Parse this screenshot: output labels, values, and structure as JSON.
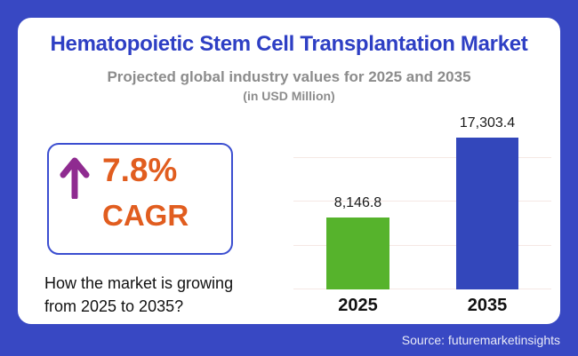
{
  "header": {
    "title": "Hematopoietic Stem Cell Transplantation Market",
    "subtitle": "Projected global industry values for 2025 and 2035",
    "unit_note": "(in USD Million)"
  },
  "cagr": {
    "value": "7.8%",
    "label": "CAGR",
    "question": "How the market is growing from 2025 to 2035?"
  },
  "chart_data": {
    "type": "bar",
    "title": "Hematopoietic Stem Cell Transplantation Market — projected global industry values",
    "categories": [
      "2025",
      "2035"
    ],
    "values": [
      8146.8,
      17303.4
    ],
    "value_labels": [
      "8,146.8",
      "17,303.4"
    ],
    "bar_colors": [
      "#56b32c",
      "#3347bb"
    ],
    "xlabel": "",
    "ylabel": "USD Million",
    "ylim": [
      0,
      20000
    ],
    "gridlines_y": [
      0,
      5000,
      10000,
      15000
    ],
    "grid": true,
    "legend": false
  },
  "footer": {
    "source": "Source: futuremarketinsights"
  },
  "colors": {
    "frame_blue": "#3848c3",
    "title_blue": "#2e3fc4",
    "subtitle_gray": "#8c8c8c",
    "accent_orange": "#e15d1f",
    "arrow_purple": "#8f2b90",
    "box_border_blue": "#3b4ed0",
    "gridline_pink": "#f5e8e4",
    "bar_green": "#56b32c",
    "bar_blue": "#3347bb"
  }
}
